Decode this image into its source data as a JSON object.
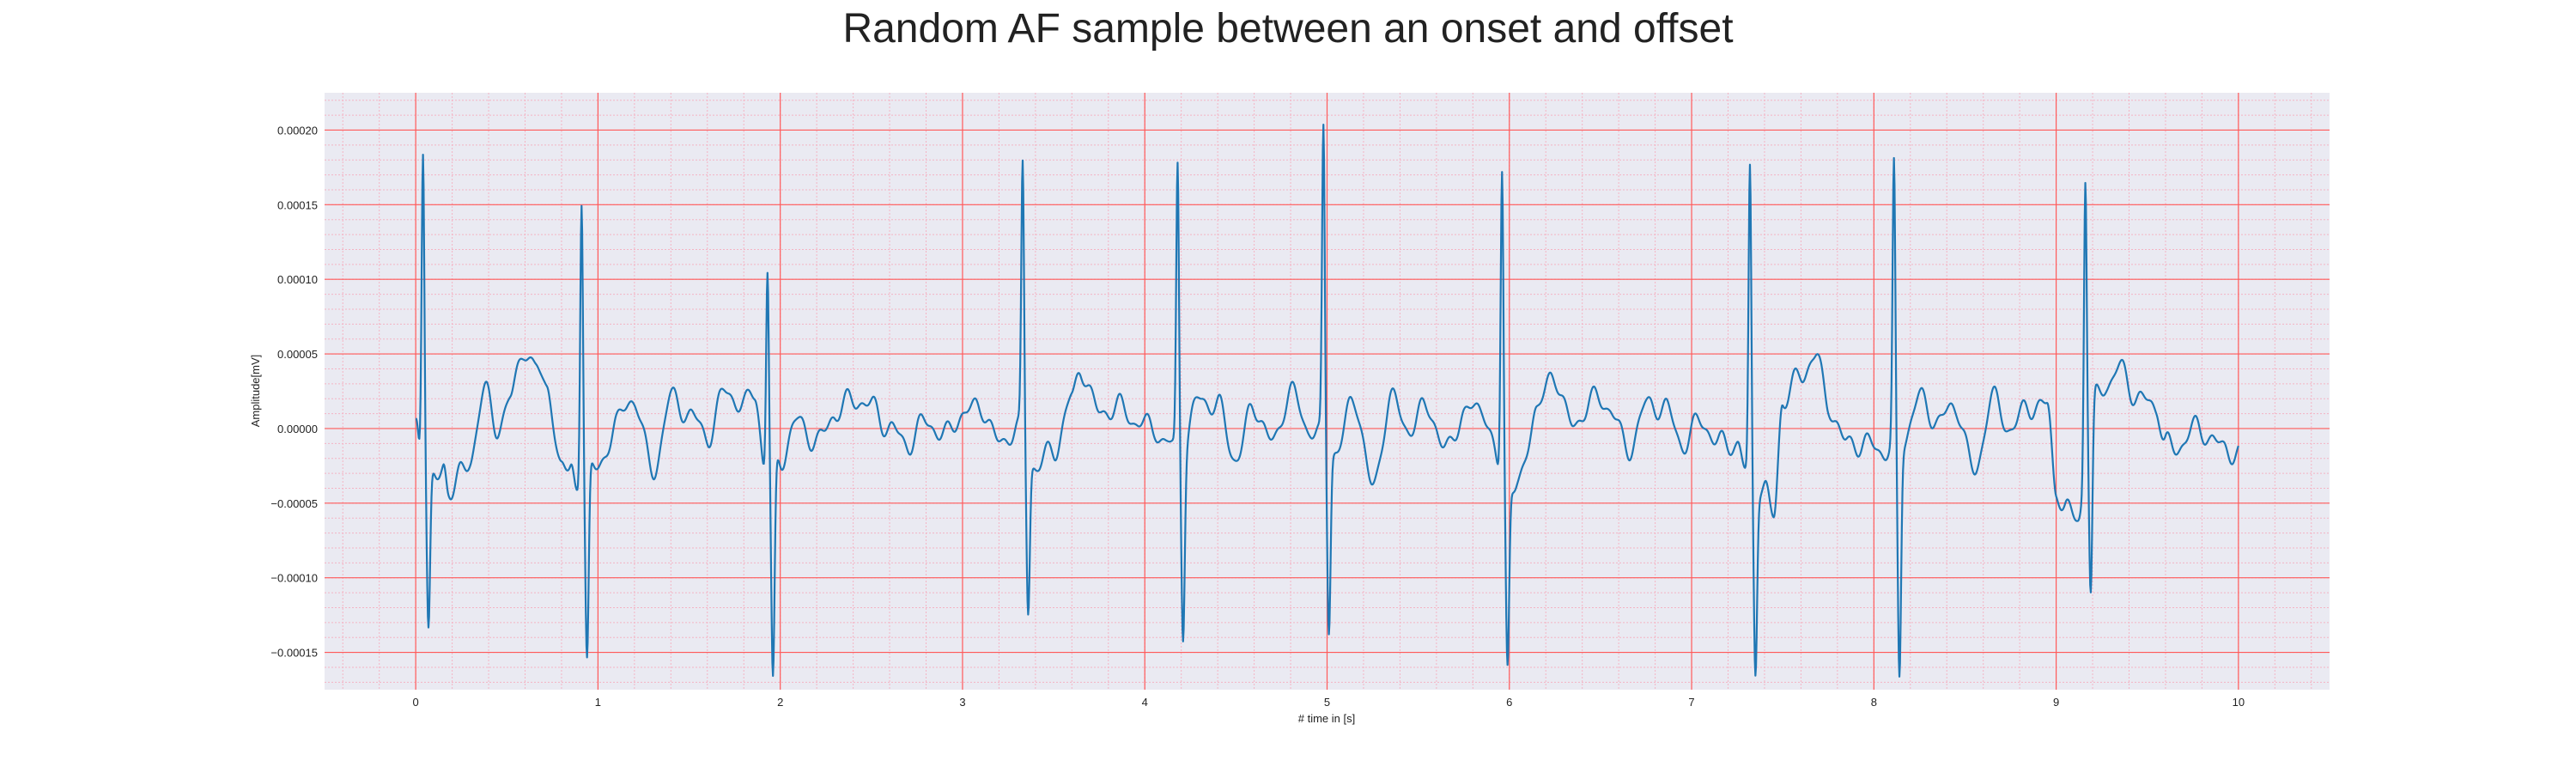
{
  "chart_data": {
    "type": "line",
    "title": "Random AF sample between an onset and offset",
    "xlabel": "# time in [s]",
    "ylabel": "Amplitude[mV]",
    "xlim": [
      -0.5,
      10.5
    ],
    "ylim": [
      -0.000175,
      0.000225
    ],
    "x_ticks": [
      0,
      1,
      2,
      3,
      4,
      5,
      6,
      7,
      8,
      9,
      10
    ],
    "x_tick_labels": [
      "0",
      "1",
      "2",
      "3",
      "4",
      "5",
      "6",
      "7",
      "8",
      "9",
      "10"
    ],
    "y_ticks": [
      -0.00015,
      -0.0001,
      -5e-05,
      0,
      5e-05,
      0.0001,
      0.00015,
      0.0002
    ],
    "y_tick_labels": [
      "−0.00015",
      "−0.00010",
      "−0.00005",
      "0.00000",
      "0.00005",
      "0.00010",
      "0.00015",
      "0.00020"
    ],
    "grid": {
      "major": true,
      "minor": true
    },
    "colors": {
      "background": "#eaeaf2",
      "major_grid": "#ff5a5a",
      "minor_grid": "#f4b4c4",
      "line": "#1f77b4"
    },
    "series": [
      {
        "color": "#1f77b4",
        "sample_rate": 300,
        "baseline_points": [
          [
            0.0,
            3e-06
          ],
          [
            0.03,
            -2.5e-05
          ],
          [
            0.1,
            -2.5e-05
          ],
          [
            0.15,
            -3e-05
          ],
          [
            0.18,
            -5e-05
          ],
          [
            0.25,
            -2e-05
          ],
          [
            0.3,
            -3e-05
          ],
          [
            0.38,
            3.5e-05
          ],
          [
            0.45,
            -1e-05
          ],
          [
            0.52,
            3e-05
          ],
          [
            0.6,
            4.5e-05
          ],
          [
            0.66,
            5e-05
          ],
          [
            0.72,
            2e-05
          ],
          [
            0.8,
            -2e-05
          ],
          [
            0.85,
            -3e-05
          ],
          [
            0.88,
            -4.5e-05
          ],
          [
            0.94,
            -2e-05
          ],
          [
            1.0,
            -3e-05
          ],
          [
            1.1,
            5e-06
          ],
          [
            1.2,
            2e-05
          ],
          [
            1.3,
            -3e-05
          ],
          [
            1.4,
            2e-05
          ],
          [
            1.5,
            1e-05
          ],
          [
            1.6,
            -5e-06
          ],
          [
            1.7,
            2.5e-05
          ],
          [
            1.8,
            1.5e-05
          ],
          [
            1.86,
            2.5e-05
          ],
          [
            1.92,
            -3e-05
          ],
          [
            2.0,
            -2e-05
          ],
          [
            2.1,
            5e-06
          ],
          [
            2.2,
            -1e-05
          ],
          [
            2.3,
            1e-05
          ],
          [
            2.4,
            2e-05
          ],
          [
            2.5,
            1.5e-05
          ],
          [
            2.6,
            0.0
          ],
          [
            2.7,
            -1e-05
          ],
          [
            2.8,
            5e-06
          ],
          [
            2.9,
            -5e-06
          ],
          [
            3.0,
            1e-05
          ],
          [
            3.1,
            1.5e-05
          ],
          [
            3.2,
            -1e-05
          ],
          [
            3.3,
            0.0
          ],
          [
            3.4,
            -2.5e-05
          ],
          [
            3.5,
            -1.5e-05
          ],
          [
            3.6,
            2e-05
          ],
          [
            3.65,
            4e-05
          ],
          [
            3.75,
            1e-05
          ],
          [
            3.85,
            1.5e-05
          ],
          [
            3.95,
            5e-06
          ],
          [
            4.05,
            0.0
          ],
          [
            4.12,
            -1e-05
          ],
          [
            4.2,
            -1.5e-05
          ],
          [
            4.3,
            2e-05
          ],
          [
            4.4,
            1.5e-05
          ],
          [
            4.5,
            -2e-05
          ],
          [
            4.6,
            1.5e-05
          ],
          [
            4.7,
            -1e-05
          ],
          [
            4.8,
            2.5e-05
          ],
          [
            4.9,
            0.0
          ],
          [
            5.05,
            -1.5e-05
          ],
          [
            5.15,
            2e-05
          ],
          [
            5.25,
            -4e-05
          ],
          [
            5.35,
            2e-05
          ],
          [
            5.45,
            0.0
          ],
          [
            5.55,
            1.5e-05
          ],
          [
            5.65,
            -1.5e-05
          ],
          [
            5.75,
            1e-05
          ],
          [
            5.85,
            1.5e-05
          ],
          [
            5.95,
            -3e-05
          ],
          [
            6.05,
            -4e-05
          ],
          [
            6.15,
            1.5e-05
          ],
          [
            6.25,
            3.5e-05
          ],
          [
            6.35,
            0.0
          ],
          [
            6.45,
            2e-05
          ],
          [
            6.55,
            1.5e-05
          ],
          [
            6.65,
            -1.5e-05
          ],
          [
            6.75,
            1.5e-05
          ],
          [
            6.85,
            1.5e-05
          ],
          [
            6.95,
            -1e-05
          ],
          [
            7.05,
            5e-06
          ],
          [
            7.15,
            -1e-05
          ],
          [
            7.25,
            -1e-05
          ],
          [
            7.3,
            -3e-05
          ],
          [
            7.4,
            -4e-05
          ],
          [
            7.45,
            -6e-05
          ],
          [
            7.5,
            2e-05
          ],
          [
            7.6,
            3.5e-05
          ],
          [
            7.68,
            5e-05
          ],
          [
            7.75,
            1.5e-05
          ],
          [
            7.85,
            -1e-05
          ],
          [
            7.95,
            -1e-05
          ],
          [
            8.05,
            -1.5e-05
          ],
          [
            8.15,
            -1e-05
          ],
          [
            8.25,
            2e-05
          ],
          [
            8.35,
            5e-06
          ],
          [
            8.45,
            1.5e-05
          ],
          [
            8.55,
            -3e-05
          ],
          [
            8.65,
            2e-05
          ],
          [
            8.75,
            0.0
          ],
          [
            8.85,
            1.5e-05
          ],
          [
            8.95,
            1.5e-05
          ],
          [
            9.0,
            -4e-05
          ],
          [
            9.05,
            -5.5e-05
          ],
          [
            9.12,
            -6e-05
          ],
          [
            9.2,
            2e-05
          ],
          [
            9.28,
            3e-05
          ],
          [
            9.35,
            4e-05
          ],
          [
            9.45,
            2e-05
          ],
          [
            9.55,
            1.5e-05
          ],
          [
            9.6,
            -1e-05
          ],
          [
            9.65,
            -1.5e-05
          ],
          [
            9.75,
            0.0
          ],
          [
            9.85,
            -5e-06
          ],
          [
            9.92,
            -1.5e-05
          ],
          [
            10.0,
            -1.5e-05
          ]
        ],
        "spikes": [
          {
            "t": 0.04,
            "peak": 0.000207,
            "trough": -0.00011
          },
          {
            "t": 0.91,
            "peak": 0.00019,
            "trough": -0.000132
          },
          {
            "t": 1.93,
            "peak": 0.000135,
            "trough": -0.000148
          },
          {
            "t": 3.33,
            "peak": 0.00018,
            "trough": -0.000105
          },
          {
            "t": 4.18,
            "peak": 0.00019,
            "trough": -0.00012
          },
          {
            "t": 4.98,
            "peak": 0.000207,
            "trough": -0.00012
          },
          {
            "t": 5.96,
            "peak": 0.000205,
            "trough": -0.000123
          },
          {
            "t": 7.32,
            "peak": 0.000203,
            "trough": -0.000125
          },
          {
            "t": 8.11,
            "peak": 0.000185,
            "trough": -0.000157
          },
          {
            "t": 9.16,
            "peak": 0.00019,
            "trough": -0.000128
          }
        ]
      }
    ]
  }
}
